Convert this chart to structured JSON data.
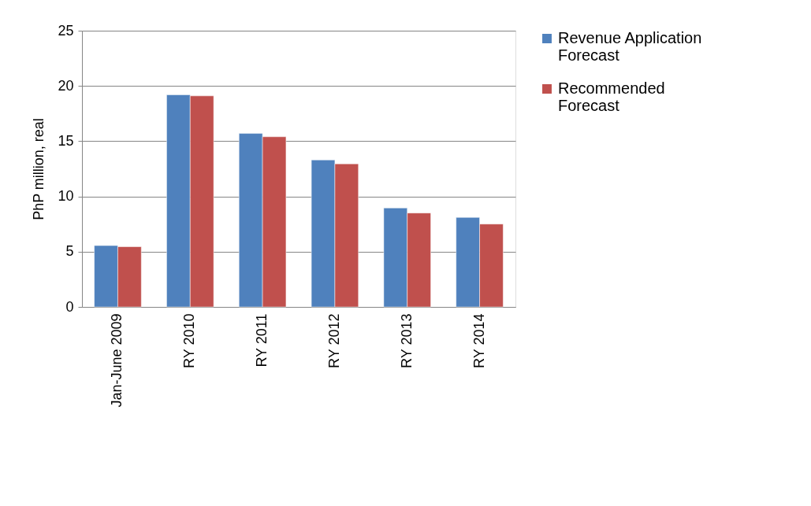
{
  "chart_data": {
    "type": "bar",
    "ylabel": "PhP million, real",
    "categories": [
      "Jan-June 2009",
      "RY 2010",
      "RY 2011",
      "RY 2012",
      "RY 2013",
      "RY 2014"
    ],
    "series": [
      {
        "name": "Revenue Application Forecast",
        "color": "#4f81bd",
        "values": [
          5.55,
          19.2,
          15.7,
          13.3,
          8.95,
          8.1
        ]
      },
      {
        "name": "Recommended Forecast",
        "color": "#c0504d",
        "values": [
          5.45,
          19.1,
          15.4,
          12.95,
          8.5,
          7.5
        ]
      }
    ],
    "ylim": [
      0,
      25
    ],
    "yticks": [
      0,
      5,
      10,
      15,
      20,
      25
    ],
    "grid": "y",
    "legend": "right"
  }
}
